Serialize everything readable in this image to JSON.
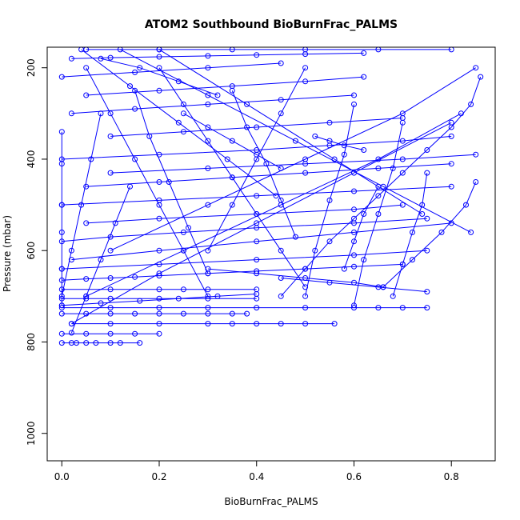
{
  "chart_data": {
    "type": "line",
    "title": "ATOM2 Southbound BioBurnFrac_PALMS",
    "xlabel": "BioBurnFrac_PALMS",
    "ylabel": "Pressure (mbar)",
    "xlim": [
      -0.03,
      0.89
    ],
    "ylim": [
      1060,
      155
    ],
    "y_reversed": true,
    "x_ticks": [
      0.0,
      0.2,
      0.4,
      0.6,
      0.8
    ],
    "x_tick_labels": [
      "0.0",
      "0.2",
      "0.4",
      "0.6",
      "0.8"
    ],
    "y_ticks": [
      200,
      400,
      600,
      800,
      1000
    ],
    "y_tick_labels": [
      "200",
      "400",
      "600",
      "800",
      "1000"
    ],
    "grid": false,
    "marker": "open-circle",
    "series_color": "#0000ff",
    "series": [
      {
        "x": [
          0.0,
          0.02,
          0.03,
          0.05,
          0.07,
          0.1,
          0.12,
          0.16
        ],
        "y": [
          802,
          802,
          802,
          802,
          802,
          802,
          802,
          802
        ]
      },
      {
        "x": [
          0.0,
          0.05,
          0.1,
          0.15,
          0.2
        ],
        "y": [
          782,
          782,
          782,
          782,
          782
        ]
      },
      {
        "x": [
          0.02,
          0.1,
          0.2,
          0.3,
          0.35,
          0.4,
          0.45,
          0.5,
          0.56
        ],
        "y": [
          760,
          760,
          760,
          760,
          760,
          760,
          760,
          760,
          760
        ]
      },
      {
        "x": [
          0.0,
          0.05,
          0.1,
          0.15,
          0.2,
          0.25,
          0.3,
          0.35,
          0.38
        ],
        "y": [
          738,
          738,
          738,
          738,
          738,
          738,
          738,
          738,
          738
        ]
      },
      {
        "x": [
          0.0,
          0.1,
          0.2,
          0.3,
          0.4,
          0.5,
          0.6,
          0.65,
          0.7,
          0.75
        ],
        "y": [
          725,
          725,
          725,
          725,
          725,
          725,
          725,
          725,
          725,
          725
        ]
      },
      {
        "x": [
          0.0,
          0.05,
          0.1,
          0.2,
          0.3,
          0.4
        ],
        "y": [
          705,
          705,
          705,
          705,
          705,
          705
        ]
      },
      {
        "x": [
          0.0,
          0.1,
          0.2,
          0.25,
          0.3,
          0.4
        ],
        "y": [
          685,
          685,
          685,
          685,
          685,
          685
        ]
      },
      {
        "x": [
          0.0,
          0.05,
          0.1,
          0.15,
          0.2,
          0.3,
          0.4,
          0.5,
          0.6,
          0.7
        ],
        "y": [
          665,
          662,
          660,
          658,
          655,
          650,
          645,
          640,
          635,
          630
        ]
      },
      {
        "x": [
          0.0,
          0.2,
          0.4,
          0.6,
          0.75
        ],
        "y": [
          640,
          630,
          620,
          610,
          600
        ]
      },
      {
        "x": [
          0.02,
          0.2,
          0.4,
          0.6,
          0.8
        ],
        "y": [
          620,
          600,
          580,
          560,
          540
        ]
      },
      {
        "x": [
          0.0,
          0.1,
          0.25,
          0.4,
          0.6,
          0.75
        ],
        "y": [
          580,
          570,
          560,
          550,
          540,
          530
        ]
      },
      {
        "x": [
          0.05,
          0.2,
          0.4,
          0.6,
          0.7
        ],
        "y": [
          540,
          530,
          520,
          510,
          500
        ]
      },
      {
        "x": [
          0.0,
          0.2,
          0.4,
          0.6,
          0.8
        ],
        "y": [
          500,
          490,
          480,
          470,
          460
        ]
      },
      {
        "x": [
          0.05,
          0.2,
          0.35,
          0.5,
          0.65,
          0.8
        ],
        "y": [
          460,
          450,
          440,
          430,
          420,
          410
        ]
      },
      {
        "x": [
          0.1,
          0.3,
          0.5,
          0.7,
          0.85
        ],
        "y": [
          430,
          420,
          410,
          400,
          390
        ]
      },
      {
        "x": [
          0.0,
          0.2,
          0.4,
          0.55,
          0.7,
          0.8
        ],
        "y": [
          400,
          390,
          380,
          370,
          360,
          350
        ]
      },
      {
        "x": [
          0.1,
          0.25,
          0.4,
          0.55,
          0.7
        ],
        "y": [
          350,
          340,
          330,
          320,
          310
        ]
      },
      {
        "x": [
          0.02,
          0.15,
          0.3,
          0.45,
          0.6
        ],
        "y": [
          300,
          290,
          280,
          270,
          260
        ]
      },
      {
        "x": [
          0.05,
          0.2,
          0.35,
          0.5,
          0.62
        ],
        "y": [
          260,
          250,
          240,
          230,
          220
        ]
      },
      {
        "x": [
          0.0,
          0.15,
          0.3,
          0.45
        ],
        "y": [
          220,
          210,
          200,
          190
        ]
      },
      {
        "x": [
          0.02,
          0.1,
          0.2,
          0.3,
          0.4,
          0.5,
          0.62
        ],
        "y": [
          180,
          178,
          176,
          174,
          172,
          170,
          168
        ]
      },
      {
        "x": [
          0.05,
          0.2,
          0.35,
          0.5,
          0.65,
          0.8
        ],
        "y": [
          160,
          160,
          160,
          160,
          160,
          160
        ]
      },
      {
        "x": [
          0.86,
          0.84,
          0.8,
          0.75,
          0.7,
          0.65,
          0.6,
          0.55,
          0.5,
          0.45
        ],
        "y": [
          220,
          280,
          330,
          380,
          430,
          480,
          530,
          580,
          640,
          700
        ]
      },
      {
        "x": [
          0.85,
          0.83,
          0.78,
          0.72,
          0.66
        ],
        "y": [
          450,
          500,
          560,
          620,
          680
        ]
      },
      {
        "x": [
          0.02,
          0.05,
          0.08,
          0.11,
          0.14
        ],
        "y": [
          780,
          700,
          620,
          540,
          460
        ]
      },
      {
        "x": [
          0.0,
          0.02,
          0.04,
          0.06,
          0.08
        ],
        "y": [
          700,
          600,
          500,
          400,
          300
        ]
      },
      {
        "x": [
          0.0,
          0.0,
          0.0,
          0.0,
          0.0,
          0.0
        ],
        "y": [
          340,
          410,
          500,
          560,
          640,
          720
        ]
      },
      {
        "x": [
          0.05,
          0.1,
          0.15,
          0.2,
          0.25,
          0.3
        ],
        "y": [
          200,
          300,
          400,
          500,
          600,
          700
        ]
      },
      {
        "x": [
          0.2,
          0.25,
          0.3,
          0.35,
          0.4,
          0.45,
          0.5
        ],
        "y": [
          200,
          280,
          360,
          440,
          520,
          600,
          680
        ]
      },
      {
        "x": [
          0.5,
          0.45,
          0.4,
          0.35,
          0.3
        ],
        "y": [
          200,
          300,
          400,
          500,
          600
        ]
      },
      {
        "x": [
          0.6,
          0.58,
          0.55,
          0.52,
          0.5
        ],
        "y": [
          280,
          390,
          490,
          600,
          700
        ]
      },
      {
        "x": [
          0.7,
          0.68,
          0.65,
          0.62,
          0.6
        ],
        "y": [
          320,
          420,
          520,
          620,
          720
        ]
      },
      {
        "x": [
          0.75,
          0.74,
          0.72,
          0.7,
          0.68
        ],
        "y": [
          430,
          500,
          560,
          630,
          700
        ]
      },
      {
        "x": [
          0.65,
          0.62,
          0.6,
          0.58
        ],
        "y": [
          460,
          520,
          580,
          640
        ]
      },
      {
        "x": [
          0.15,
          0.18,
          0.22,
          0.26,
          0.3
        ],
        "y": [
          250,
          350,
          450,
          550,
          650
        ]
      },
      {
        "x": [
          0.35,
          0.38,
          0.42,
          0.45,
          0.48
        ],
        "y": [
          250,
          330,
          410,
          490,
          570
        ]
      },
      {
        "x": [
          0.1,
          0.3,
          0.5,
          0.7,
          0.85
        ],
        "y": [
          600,
          500,
          400,
          300,
          200
        ]
      },
      {
        "x": [
          0.05,
          0.25,
          0.45,
          0.65,
          0.82
        ],
        "y": [
          700,
          600,
          500,
          400,
          300
        ]
      },
      {
        "x": [
          0.02,
          0.2,
          0.4,
          0.6,
          0.8
        ],
        "y": [
          760,
          650,
          540,
          430,
          320
        ]
      },
      {
        "x": [
          0.12,
          0.3,
          0.48,
          0.66,
          0.84
        ],
        "y": [
          160,
          260,
          360,
          460,
          560
        ]
      },
      {
        "x": [
          0.2,
          0.38,
          0.56,
          0.74
        ],
        "y": [
          160,
          280,
          400,
          520
        ]
      },
      {
        "x": [
          0.04,
          0.14,
          0.24,
          0.34,
          0.44
        ],
        "y": [
          160,
          240,
          320,
          400,
          480
        ]
      },
      {
        "x": [
          0.3,
          0.4,
          0.5,
          0.6,
          0.66
        ],
        "y": [
          640,
          650,
          660,
          670,
          680
        ]
      },
      {
        "x": [
          0.45,
          0.55,
          0.65,
          0.75
        ],
        "y": [
          660,
          670,
          680,
          690
        ]
      },
      {
        "x": [
          0.0,
          0.08,
          0.16,
          0.24,
          0.32,
          0.4
        ],
        "y": [
          720,
          715,
          710,
          705,
          700,
          695
        ]
      },
      {
        "x": [
          0.08,
          0.16,
          0.24,
          0.32
        ],
        "y": [
          180,
          200,
          230,
          260
        ]
      },
      {
        "x": [
          0.25,
          0.3,
          0.35,
          0.4,
          0.45
        ],
        "y": [
          300,
          330,
          360,
          390,
          420
        ]
      },
      {
        "x": [
          0.52,
          0.55,
          0.58,
          0.62
        ],
        "y": [
          350,
          360,
          370,
          380
        ]
      }
    ]
  }
}
